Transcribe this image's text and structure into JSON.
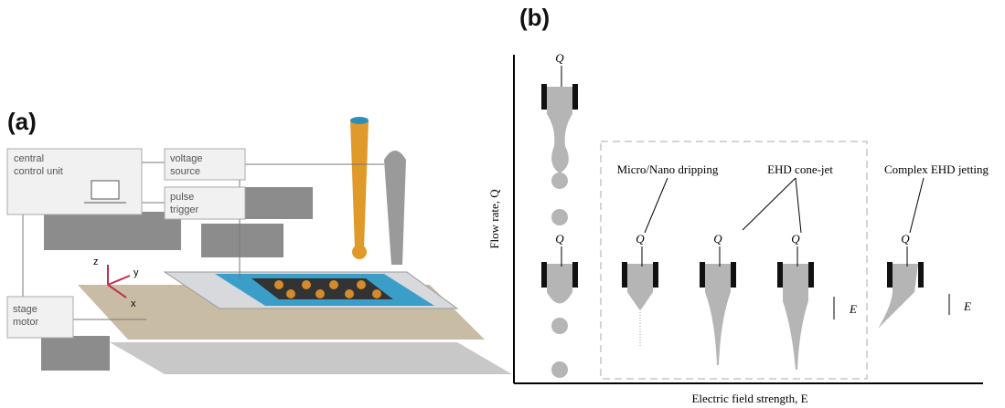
{
  "panel_a": {
    "label": "(a)",
    "boxes": [
      {
        "lines": [
          "central",
          "control unit"
        ]
      },
      {
        "lines": [
          "voltage",
          "source"
        ]
      },
      {
        "lines": [
          "pulse",
          "trigger"
        ]
      },
      {
        "lines": [
          "stage",
          "motor"
        ]
      }
    ],
    "axes": [
      "z",
      "y",
      "x"
    ]
  },
  "panel_b": {
    "label": "(b)",
    "y_axis_label": "Flow rate, Q",
    "x_axis_label": "Electric field strength, E",
    "regimes": [
      "Micro/Nano dripping",
      "EHD cone-jet",
      "Complex EHD jetting"
    ],
    "flow_symbols": [
      "Q",
      "Q",
      "Q",
      "Q",
      "Q",
      "Q"
    ],
    "field_symbols": [
      "E",
      "E"
    ]
  }
}
